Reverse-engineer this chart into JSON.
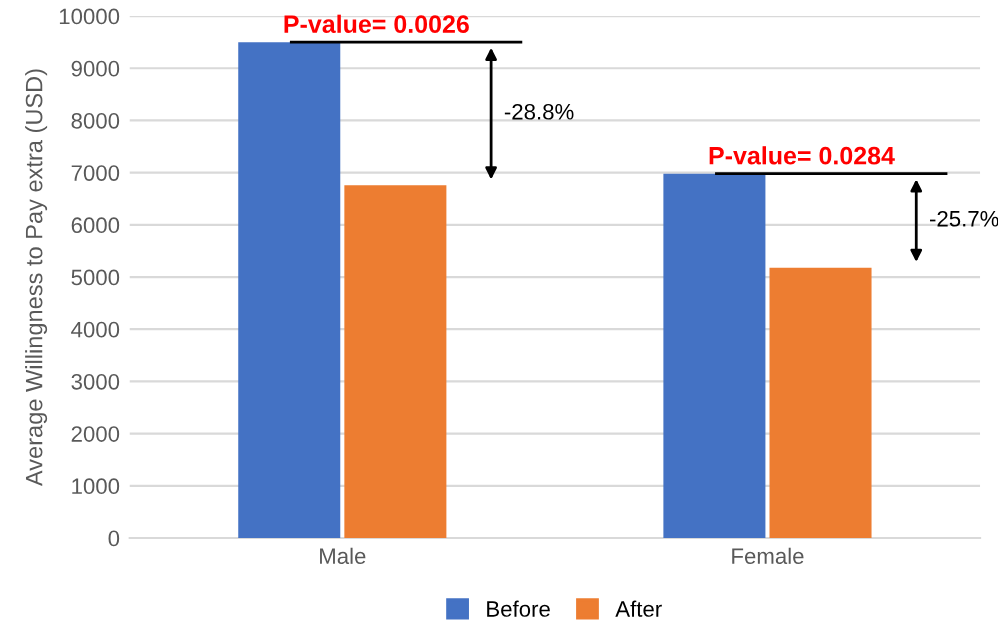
{
  "chart_data": {
    "type": "bar",
    "ylabel": "Average Willingness to Pay extra (USD)",
    "categories": [
      "Male",
      "Female"
    ],
    "series": [
      {
        "name": "Before",
        "color": "#4472c4",
        "values": [
          9500,
          6980
        ]
      },
      {
        "name": "After",
        "color": "#ed7d31",
        "values": [
          6760,
          5180
        ]
      }
    ],
    "ylim": [
      0,
      10000
    ],
    "yticks": [
      0,
      1000,
      2000,
      3000,
      4000,
      5000,
      6000,
      7000,
      8000,
      9000,
      10000
    ],
    "grid": "y",
    "legend": "bottom",
    "annotations": [
      "P-value= 0.0026",
      "-28.8%",
      "P-value= 0.0284",
      "-25.7%"
    ]
  }
}
